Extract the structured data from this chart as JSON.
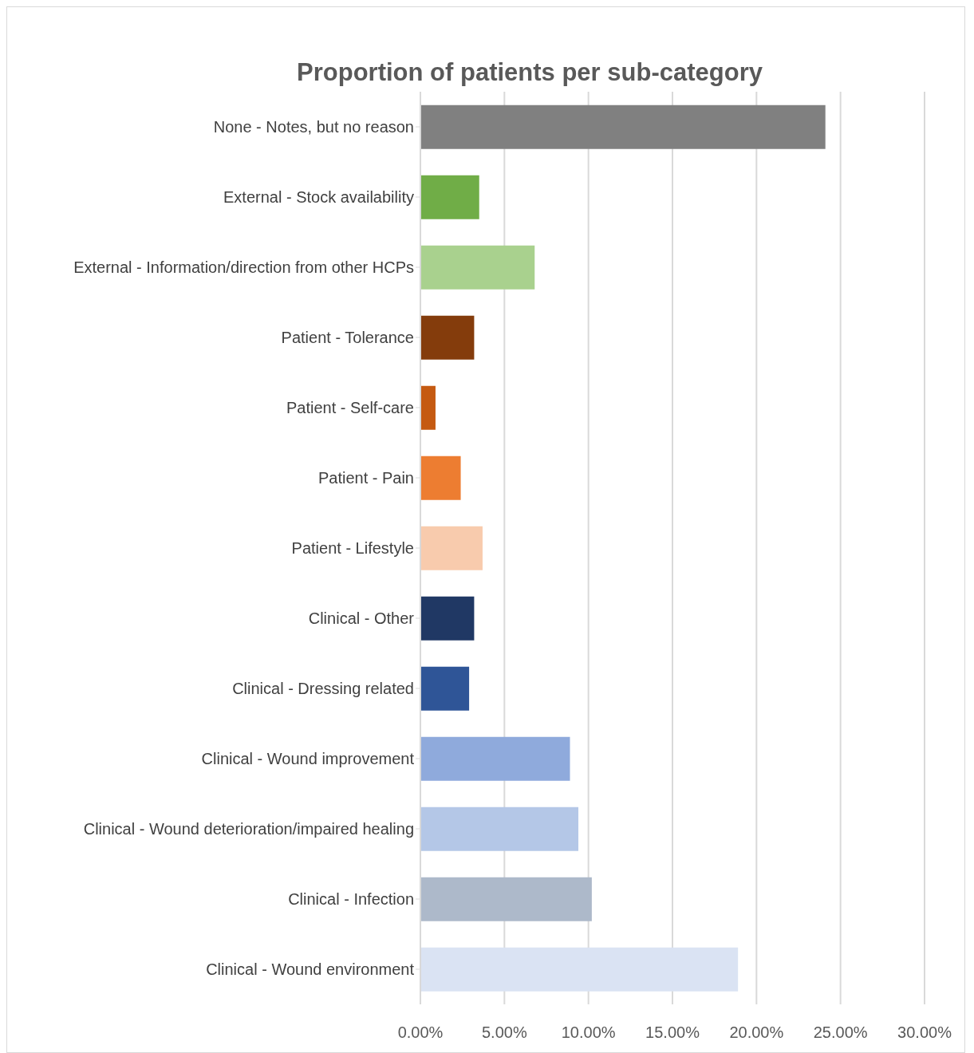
{
  "chart_data": {
    "type": "bar",
    "orientation": "horizontal",
    "title": "Proportion of patients per sub-category",
    "categories": [
      "None - Notes, but no reason",
      "External - Stock availability",
      "External - Information/direction from other HCPs",
      "Patient - Tolerance",
      "Patient - Self-care",
      "Patient - Pain",
      "Patient - Lifestyle",
      "Clinical - Other",
      "Clinical - Dressing related",
      "Clinical - Wound improvement",
      "Clinical - Wound deterioration/impaired healing",
      "Clinical - Infection",
      "Clinical  - Wound environment"
    ],
    "values": [
      24.1,
      3.5,
      6.8,
      3.2,
      0.9,
      2.4,
      3.7,
      3.2,
      2.9,
      8.9,
      9.4,
      10.2,
      18.9
    ],
    "colors": [
      "#808080",
      "#70ad47",
      "#a9d18e",
      "#843c0c",
      "#c55a11",
      "#ed7d31",
      "#f8cbad",
      "#203864",
      "#2f5597",
      "#8faadc",
      "#b4c7e7",
      "#adb9ca",
      "#dae3f3"
    ],
    "xlim": [
      0,
      30
    ],
    "xticks": [
      {
        "value": 0,
        "label": "0.00%"
      },
      {
        "value": 5,
        "label": "5.00%"
      },
      {
        "value": 10,
        "label": "10.00%"
      },
      {
        "value": 15,
        "label": "15.00%"
      },
      {
        "value": 20,
        "label": "20.00%"
      },
      {
        "value": 25,
        "label": "25.00%"
      },
      {
        "value": 30,
        "label": "30.00%"
      }
    ],
    "grid": "x"
  }
}
